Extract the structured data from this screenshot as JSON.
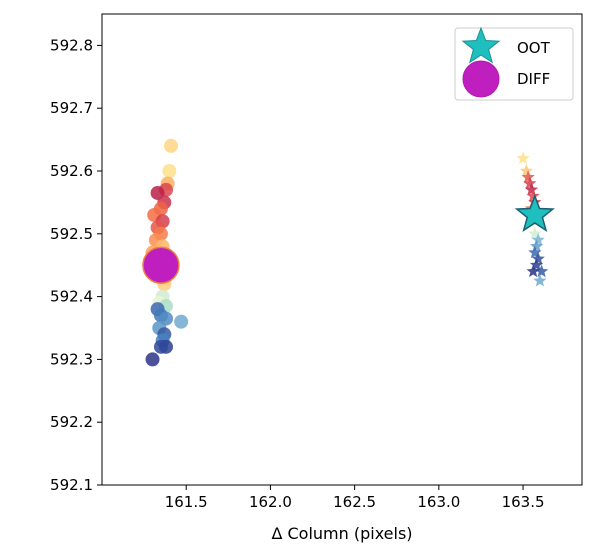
{
  "chart_data": {
    "type": "scatter",
    "title": "",
    "xlabel": "Δ Column (pixels)",
    "ylabel": "",
    "xlim": [
      161.0,
      163.85
    ],
    "ylim": [
      592.1,
      592.85
    ],
    "xticks": [
      161.5,
      162.0,
      162.5,
      163.0,
      163.5
    ],
    "xtick_labels": [
      "161.5",
      "162.0",
      "162.5",
      "163.0",
      "163.5"
    ],
    "yticks": [
      592.1,
      592.2,
      592.3,
      592.4,
      592.5,
      592.6,
      592.7,
      592.8
    ],
    "ytick_labels": [
      "592.1",
      "592.2",
      "592.3",
      "592.4",
      "592.5",
      "592.6",
      "592.7",
      "592.8"
    ],
    "grid": false,
    "legend": {
      "placement": "top-right",
      "entries": [
        {
          "label": "OOT",
          "marker": "star",
          "color": "#1fbfbf"
        },
        {
          "label": "DIFF",
          "marker": "circle",
          "color": "#c01fc0"
        }
      ]
    },
    "colormap": "Spectral",
    "series": [
      {
        "name": "DIFF",
        "marker": "circle",
        "points": [
          {
            "x": 161.41,
            "y": 592.64,
            "c": 0.38
          },
          {
            "x": 161.4,
            "y": 592.6,
            "c": 0.4
          },
          {
            "x": 161.39,
            "y": 592.58,
            "c": 0.3
          },
          {
            "x": 161.38,
            "y": 592.57,
            "c": 0.12
          },
          {
            "x": 161.33,
            "y": 592.565,
            "c": 0.05
          },
          {
            "x": 161.37,
            "y": 592.55,
            "c": 0.08
          },
          {
            "x": 161.35,
            "y": 592.54,
            "c": 0.18
          },
          {
            "x": 161.31,
            "y": 592.53,
            "c": 0.2
          },
          {
            "x": 161.36,
            "y": 592.52,
            "c": 0.1
          },
          {
            "x": 161.33,
            "y": 592.51,
            "c": 0.15
          },
          {
            "x": 161.35,
            "y": 592.5,
            "c": 0.22
          },
          {
            "x": 161.32,
            "y": 592.49,
            "c": 0.25
          },
          {
            "x": 161.36,
            "y": 592.48,
            "c": 0.32
          },
          {
            "x": 161.3,
            "y": 592.47,
            "c": 0.28
          },
          {
            "x": 161.38,
            "y": 592.46,
            "c": 0.35
          },
          {
            "x": 161.34,
            "y": 592.45,
            "c": 0.3
          },
          {
            "x": 161.35,
            "y": 592.43,
            "c": 0.4
          },
          {
            "x": 161.37,
            "y": 592.42,
            "c": 0.36
          },
          {
            "x": 161.36,
            "y": 592.4,
            "c": 0.55
          },
          {
            "x": 161.34,
            "y": 592.39,
            "c": 0.52
          },
          {
            "x": 161.38,
            "y": 592.385,
            "c": 0.6
          },
          {
            "x": 161.33,
            "y": 592.38,
            "c": 0.85
          },
          {
            "x": 161.35,
            "y": 592.37,
            "c": 0.82
          },
          {
            "x": 161.38,
            "y": 592.365,
            "c": 0.78
          },
          {
            "x": 161.47,
            "y": 592.36,
            "c": 0.72
          },
          {
            "x": 161.34,
            "y": 592.35,
            "c": 0.76
          },
          {
            "x": 161.37,
            "y": 592.34,
            "c": 0.88
          },
          {
            "x": 161.36,
            "y": 592.33,
            "c": 0.8
          },
          {
            "x": 161.38,
            "y": 592.32,
            "c": 0.95
          },
          {
            "x": 161.35,
            "y": 592.32,
            "c": 0.92
          },
          {
            "x": 161.3,
            "y": 592.3,
            "c": 0.98
          }
        ]
      },
      {
        "name": "OOT",
        "marker": "star",
        "points": [
          {
            "x": 163.5,
            "y": 592.62,
            "c": 0.4
          },
          {
            "x": 163.52,
            "y": 592.6,
            "c": 0.35
          },
          {
            "x": 163.53,
            "y": 592.59,
            "c": 0.15
          },
          {
            "x": 163.54,
            "y": 592.58,
            "c": 0.1
          },
          {
            "x": 163.55,
            "y": 592.57,
            "c": 0.06
          },
          {
            "x": 163.56,
            "y": 592.56,
            "c": 0.12
          },
          {
            "x": 163.57,
            "y": 592.55,
            "c": 0.08
          },
          {
            "x": 163.55,
            "y": 592.54,
            "c": 0.2
          },
          {
            "x": 163.58,
            "y": 592.52,
            "c": 0.45
          },
          {
            "x": 163.57,
            "y": 592.5,
            "c": 0.55
          },
          {
            "x": 163.59,
            "y": 592.49,
            "c": 0.7
          },
          {
            "x": 163.58,
            "y": 592.48,
            "c": 0.75
          },
          {
            "x": 163.57,
            "y": 592.47,
            "c": 0.85
          },
          {
            "x": 163.59,
            "y": 592.46,
            "c": 0.9
          },
          {
            "x": 163.58,
            "y": 592.45,
            "c": 0.95
          },
          {
            "x": 163.61,
            "y": 592.44,
            "c": 0.88
          },
          {
            "x": 163.56,
            "y": 592.44,
            "c": 0.98
          },
          {
            "x": 163.6,
            "y": 592.425,
            "c": 0.72
          }
        ]
      }
    ],
    "highlights": [
      {
        "name": "OOT",
        "marker": "star",
        "x": 163.57,
        "y": 592.53,
        "color": "#1fbfbf"
      },
      {
        "name": "DIFF",
        "marker": "circle",
        "x": 161.35,
        "y": 592.45,
        "color": "#c01fc0"
      }
    ]
  }
}
